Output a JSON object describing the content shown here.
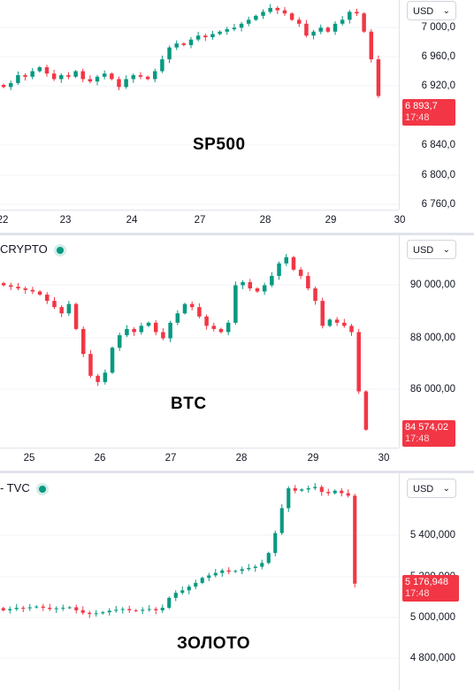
{
  "colors": {
    "up": "#089981",
    "down": "#f23645",
    "grid": "#f0f3fa"
  },
  "chart_data": [
    {
      "type": "candlestick",
      "title": "SP500",
      "currency": "USD",
      "last_price": "6 893,7",
      "last_time": "17:48",
      "ylim": [
        6750,
        7015
      ],
      "y_ticks": [
        "7 000,0",
        "6 960,0",
        "6 920,0",
        "6 840,0",
        "6 800,0",
        "6 760,0"
      ],
      "x_ticks": [
        "22",
        "23",
        "24",
        "27",
        "28",
        "29",
        "30"
      ],
      "series_close": [
        6905,
        6910,
        6920,
        6918,
        6925,
        6930,
        6922,
        6915,
        6920,
        6918,
        6925,
        6915,
        6912,
        6918,
        6922,
        6915,
        6905,
        6915,
        6920,
        6918,
        6915,
        6925,
        6940,
        6955,
        6960,
        6958,
        6965,
        6970,
        6968,
        6972,
        6975,
        6978,
        6980,
        6985,
        6990,
        6995,
        7000,
        7005,
        7002,
        6998,
        6990,
        6985,
        6970,
        6975,
        6980,
        6975,
        6985,
        6990,
        7000,
        6998,
        6975,
        6940,
        6893.7
      ]
    },
    {
      "type": "candlestick",
      "title": "BTC",
      "symbol": "CRYPTO",
      "currency": "USD",
      "last_price": "84 574,02",
      "last_time": "17:48",
      "ylim": [
        84000,
        90800
      ],
      "y_ticks": [
        "90 000,00",
        "88 000,00",
        "86 000,00"
      ],
      "x_ticks": [
        "25",
        "26",
        "27",
        "28",
        "29",
        "30"
      ],
      "series_close": [
        89200,
        89150,
        89100,
        89050,
        89000,
        88900,
        88700,
        88500,
        88300,
        88600,
        87800,
        87000,
        86300,
        86100,
        86400,
        87200,
        87600,
        87800,
        87700,
        87900,
        88000,
        87700,
        87500,
        88000,
        88300,
        88600,
        88500,
        88200,
        87900,
        87800,
        87700,
        88000,
        89200,
        89300,
        89100,
        89000,
        89200,
        89500,
        89900,
        90100,
        89700,
        89500,
        89100,
        88700,
        87900,
        88100,
        88000,
        87900,
        87700,
        85800,
        84574
      ]
    },
    {
      "type": "candlestick",
      "title": "ЗОЛОТО",
      "symbol": "TVC",
      "currency": "USD",
      "last_price": "5 176,948",
      "last_time": "17:48",
      "ylim": [
        4750,
        5620
      ],
      "y_ticks": [
        "5 400,000",
        "5 200,000",
        "5 000,000",
        "4 800,000"
      ],
      "series_close": [
        5070,
        5075,
        5080,
        5078,
        5082,
        5085,
        5080,
        5075,
        5078,
        5080,
        5082,
        5070,
        5060,
        5055,
        5058,
        5062,
        5068,
        5072,
        5075,
        5070,
        5068,
        5072,
        5075,
        5070,
        5080,
        5120,
        5140,
        5150,
        5165,
        5180,
        5200,
        5210,
        5220,
        5230,
        5225,
        5228,
        5235,
        5240,
        5245,
        5260,
        5300,
        5380,
        5480,
        5560,
        5550,
        5555,
        5560,
        5565,
        5545,
        5540,
        5550,
        5540,
        5530,
        5176.948
      ]
    }
  ]
}
